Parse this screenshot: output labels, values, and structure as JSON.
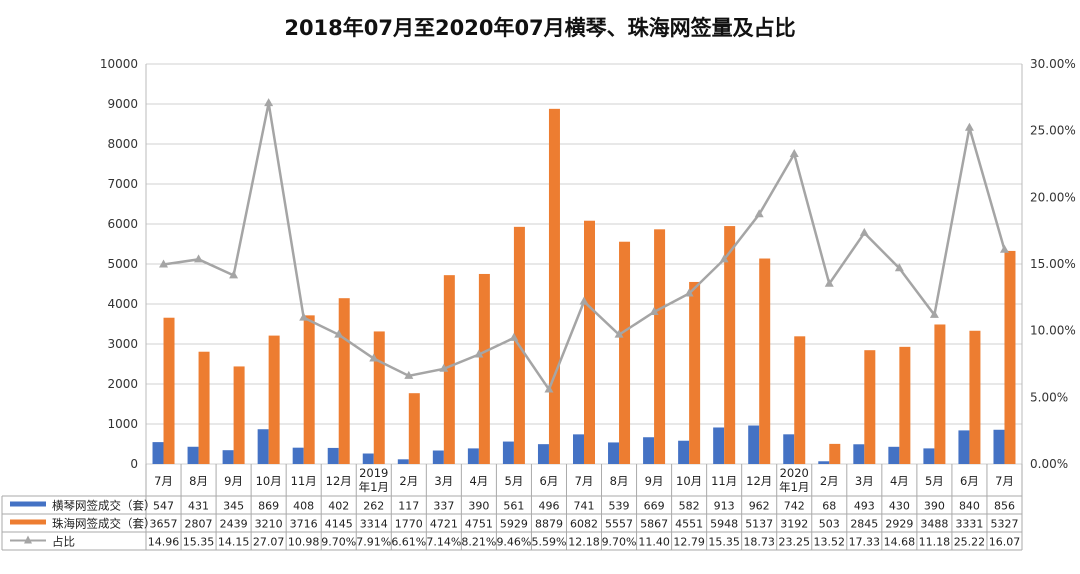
{
  "chart_data": {
    "type": "bar",
    "title": "2018年07月至2020年07月横琴、珠海网签量及占比",
    "categories": [
      "7月",
      "8月",
      "9月",
      "10月",
      "11月",
      "12月",
      "2019年1月",
      "2月",
      "3月",
      "4月",
      "5月",
      "6月",
      "7月",
      "8月",
      "9月",
      "10月",
      "11月",
      "12月",
      "2020年1月",
      "2月",
      "3月",
      "4月",
      "5月",
      "6月",
      "7月"
    ],
    "category_lines": [
      [
        "7月"
      ],
      [
        "8月"
      ],
      [
        "9月"
      ],
      [
        "10月"
      ],
      [
        "11月"
      ],
      [
        "12月"
      ],
      [
        "2019",
        "年1月"
      ],
      [
        "2月"
      ],
      [
        "3月"
      ],
      [
        "4月"
      ],
      [
        "5月"
      ],
      [
        "6月"
      ],
      [
        "7月"
      ],
      [
        "8月"
      ],
      [
        "9月"
      ],
      [
        "10月"
      ],
      [
        "11月"
      ],
      [
        "12月"
      ],
      [
        "2020",
        "年1月"
      ],
      [
        "2月"
      ],
      [
        "3月"
      ],
      [
        "4月"
      ],
      [
        "5月"
      ],
      [
        "6月"
      ],
      [
        "7月"
      ]
    ],
    "series": [
      {
        "name": "横琴网签成交（套）",
        "type": "bar",
        "axis": "left",
        "color": "#4472C4",
        "values": [
          547,
          431,
          345,
          869,
          408,
          402,
          262,
          117,
          337,
          390,
          561,
          496,
          741,
          539,
          669,
          582,
          913,
          962,
          742,
          68,
          493,
          430,
          390,
          840,
          856
        ]
      },
      {
        "name": "珠海网签成交（套）",
        "type": "bar",
        "axis": "left",
        "color": "#ED7D31",
        "values": [
          3657,
          2807,
          2439,
          3210,
          3716,
          4145,
          3314,
          1770,
          4721,
          4751,
          5929,
          8879,
          6082,
          5557,
          5867,
          4551,
          5948,
          5137,
          3192,
          503,
          2845,
          2929,
          3488,
          3331,
          5327
        ]
      },
      {
        "name": "占比",
        "type": "line",
        "axis": "right",
        "color": "#A5A5A5",
        "values": [
          14.96,
          15.35,
          14.15,
          27.07,
          10.98,
          9.7,
          7.91,
          6.61,
          7.14,
          8.21,
          9.46,
          5.59,
          12.18,
          9.7,
          11.4,
          12.79,
          15.35,
          18.73,
          23.25,
          13.52,
          17.33,
          14.68,
          11.18,
          25.22,
          16.07
        ],
        "labels": [
          "14.96",
          "15.35",
          "14.15",
          "27.07",
          "10.98",
          "9.70%",
          "7.91%",
          "6.61%",
          "7.14%",
          "8.21%",
          "9.46%",
          "5.59%",
          "12.18",
          "9.70%",
          "11.40",
          "12.79",
          "15.35",
          "18.73",
          "23.25",
          "13.52",
          "17.33",
          "14.68",
          "11.18",
          "25.22",
          "16.07"
        ]
      }
    ],
    "y_left": {
      "min": 0,
      "max": 10000,
      "ticks": [
        "0",
        "1000",
        "2000",
        "3000",
        "4000",
        "5000",
        "6000",
        "7000",
        "8000",
        "9000",
        "10000"
      ]
    },
    "y_right": {
      "min": 0,
      "max": 30,
      "unit": "%",
      "ticks": [
        "0.00%",
        "5.00%",
        "10.00%",
        "15.00%",
        "20.00%",
        "25.00%",
        "30.00%"
      ]
    },
    "grid": true,
    "legend": "data-table-bottom"
  }
}
